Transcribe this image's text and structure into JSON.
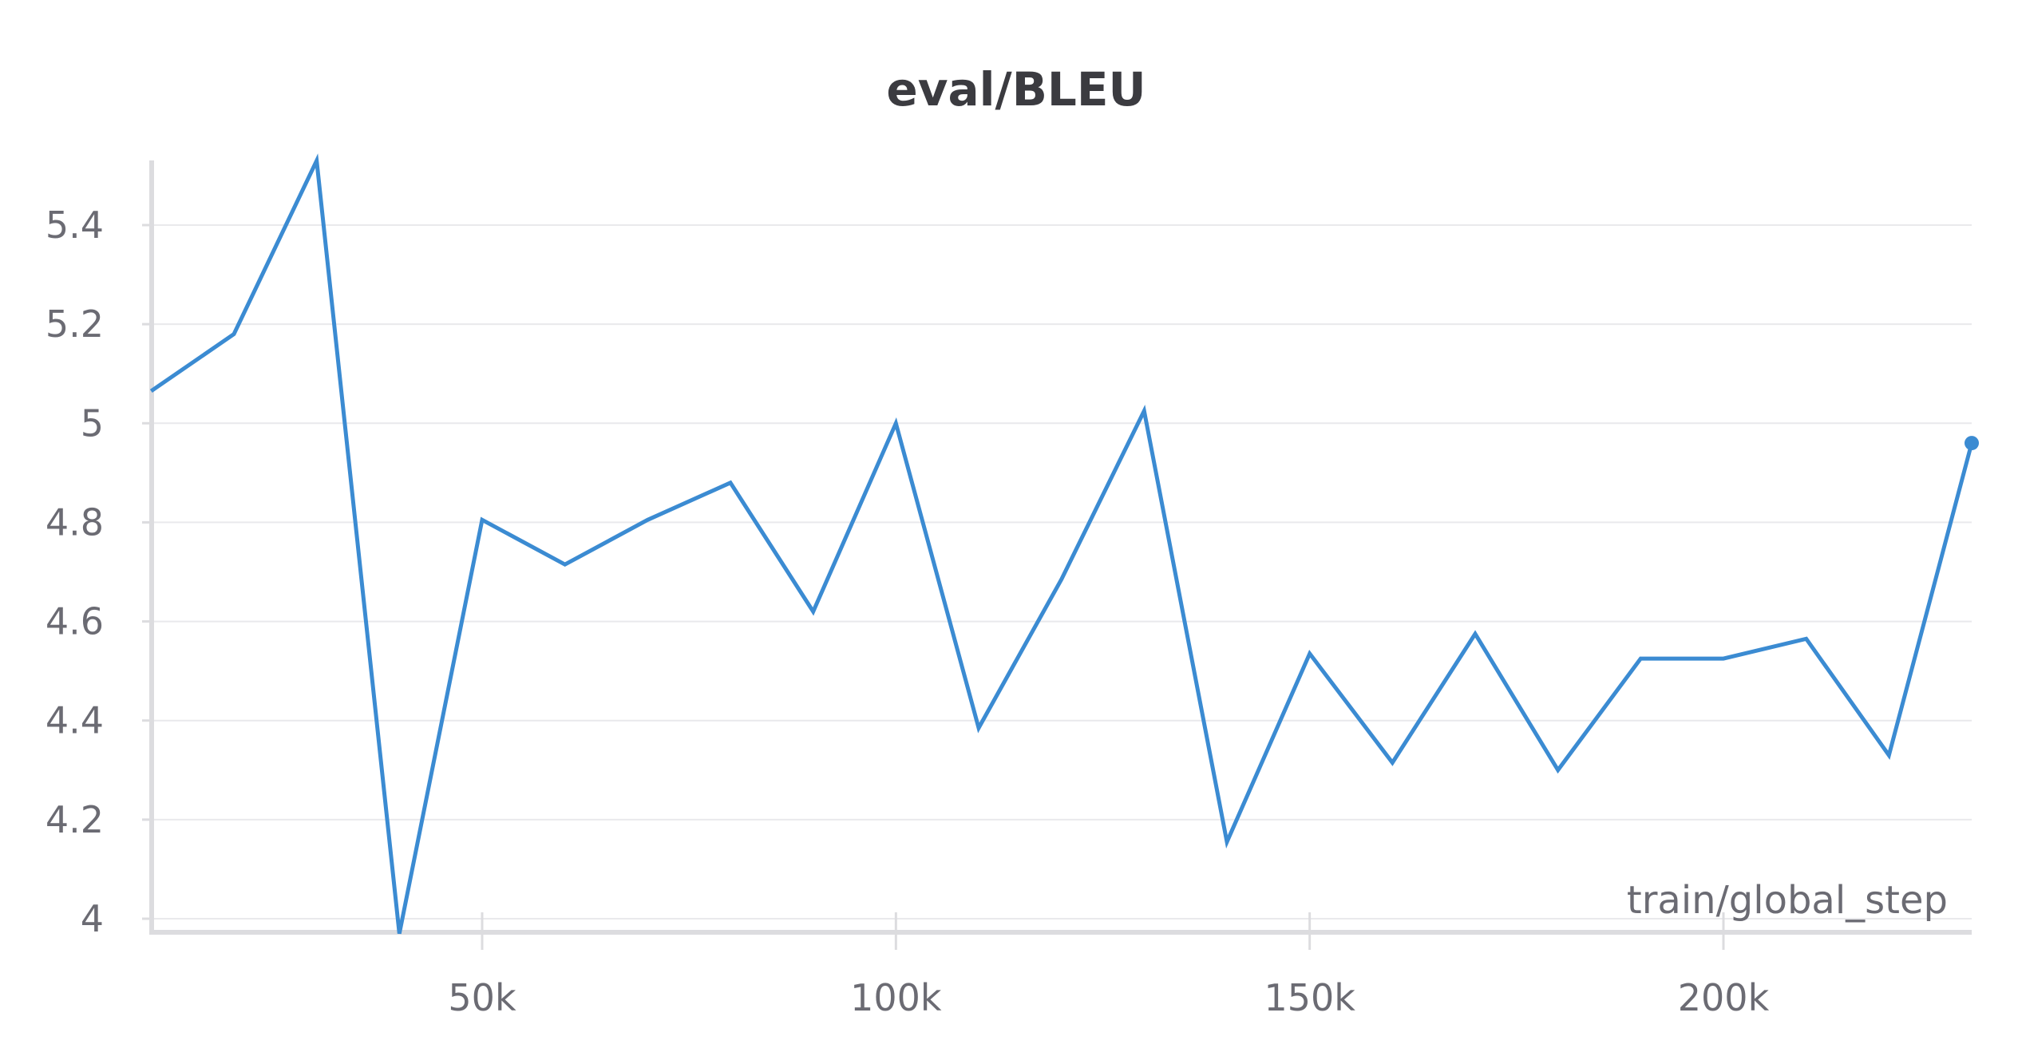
{
  "chart_data": {
    "type": "line",
    "title": "eval/BLEU",
    "xlabel": "train/global_step",
    "ylabel": "",
    "xlim": [
      10000,
      230000
    ],
    "ylim": [
      3.97,
      5.6
    ],
    "x_ticks": [
      50000,
      100000,
      150000,
      200000
    ],
    "x_tick_labels": [
      "50k",
      "100k",
      "150k",
      "200k"
    ],
    "y_ticks": [
      4,
      4.2,
      4.4,
      4.6,
      4.8,
      5,
      5.2,
      5.4
    ],
    "y_tick_labels": [
      "4",
      "4.2",
      "4.4",
      "4.6",
      "4.8",
      "5",
      "5.2",
      "5.4"
    ],
    "grid": true,
    "legend": "none",
    "colors": {
      "line": "#3b8bd2",
      "grid": "#e9e9ec",
      "axis": "#dcdcdf",
      "title": "#3b3b40",
      "ticks": "#6b6b73"
    },
    "series": [
      {
        "x": [
          10000,
          20000,
          30000,
          40000,
          50000,
          60000,
          70000,
          80000,
          90000,
          100000,
          110000,
          120000,
          130000,
          140000,
          150000,
          160000,
          170000,
          180000,
          190000,
          200000,
          210000,
          220000,
          230000
        ],
        "values": [
          5.065,
          5.18,
          5.53,
          3.97,
          4.805,
          4.715,
          4.805,
          4.88,
          4.62,
          5.0,
          4.385,
          4.685,
          5.025,
          4.155,
          4.535,
          4.315,
          4.575,
          4.3,
          4.525,
          4.525,
          4.565,
          4.33,
          4.96
        ]
      }
    ]
  }
}
